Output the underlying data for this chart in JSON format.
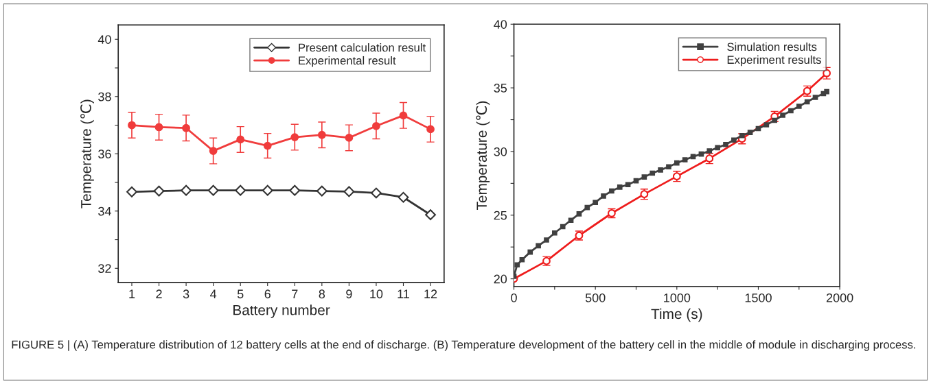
{
  "chart_data": [
    {
      "type": "line",
      "xlabel": "Battery number",
      "ylabel": "Temperature (℃)",
      "x": [
        1,
        2,
        3,
        4,
        5,
        6,
        7,
        8,
        9,
        10,
        11,
        12
      ],
      "xlim": [
        0.5,
        12.5
      ],
      "xticks": [
        1,
        2,
        3,
        4,
        5,
        6,
        7,
        8,
        9,
        10,
        11,
        12
      ],
      "ylim": [
        31.5,
        40.5
      ],
      "yticks": [
        32,
        {
          "value": 33,
          "label": null
        },
        34,
        {
          "value": 35,
          "label": null
        },
        36,
        {
          "value": 37,
          "label": null
        },
        38,
        {
          "value": 39,
          "label": null
        },
        40
      ],
      "legend": "top right",
      "grid": false,
      "series": [
        {
          "name": "Present calculation result",
          "color": "#333333",
          "marker": "diamond",
          "values": [
            34.67,
            34.7,
            34.72,
            34.72,
            34.72,
            34.72,
            34.72,
            34.7,
            34.68,
            34.63,
            34.48,
            33.87
          ]
        },
        {
          "name": "Experimental result",
          "color": "#f03c3c",
          "marker": "circle",
          "values": [
            37.0,
            36.93,
            36.9,
            36.1,
            36.5,
            36.28,
            36.58,
            36.66,
            36.56,
            36.97,
            37.34,
            36.86
          ],
          "errors": [
            0.45,
            0.45,
            0.45,
            0.45,
            0.45,
            0.43,
            0.45,
            0.45,
            0.45,
            0.45,
            0.45,
            0.45
          ]
        }
      ],
      "annotations": [
        "FIGURE 5 | (A) Temperature distribution of 12 battery cells at the end of discharge. (B) Temperature development of the battery cell in the middle of module in discharging process."
      ]
    },
    {
      "type": "line",
      "xlabel": "Time (s)",
      "ylabel": "Temperature (℃)",
      "xlim": [
        0,
        2000
      ],
      "xticks": [
        0,
        {
          "value": 250,
          "label": null
        },
        500,
        {
          "value": 750,
          "label": null
        },
        1000,
        {
          "value": 1250,
          "label": null
        },
        1500,
        {
          "value": 1750,
          "label": null
        },
        2000
      ],
      "ylim": [
        19.4,
        40
      ],
      "yticks": [
        20,
        {
          "value": 22.5,
          "label": null
        },
        25,
        {
          "value": 27.5,
          "label": null
        },
        30,
        {
          "value": 32.5,
          "label": null
        },
        35,
        {
          "value": 37.5,
          "label": null
        },
        40
      ],
      "legend": "top right",
      "grid": false,
      "series": [
        {
          "name": "Simulation results",
          "color": "#404040",
          "marker": "square",
          "x": [
            0,
            20,
            50,
            100,
            150,
            200,
            250,
            300,
            350,
            400,
            450,
            500,
            550,
            600,
            650,
            700,
            750,
            800,
            850,
            900,
            950,
            1000,
            1050,
            1100,
            1150,
            1200,
            1250,
            1300,
            1350,
            1400,
            1450,
            1500,
            1550,
            1600,
            1650,
            1700,
            1750,
            1800,
            1850,
            1900,
            1920
          ],
          "values": [
            20.2,
            21.1,
            21.5,
            22.1,
            22.6,
            23.05,
            23.6,
            24.1,
            24.6,
            25.1,
            25.6,
            26.0,
            26.5,
            26.9,
            27.2,
            27.4,
            27.7,
            28.0,
            28.3,
            28.55,
            28.8,
            29.1,
            29.35,
            29.6,
            29.8,
            30.05,
            30.3,
            30.55,
            30.9,
            31.25,
            31.5,
            31.8,
            32.1,
            32.45,
            32.85,
            33.2,
            33.55,
            33.9,
            34.25,
            34.55,
            34.7
          ]
        },
        {
          "name": "Experiment results",
          "color": "#ee1c1c",
          "marker": "circle",
          "x": [
            0,
            200,
            400,
            600,
            800,
            1000,
            1200,
            1400,
            1600,
            1800,
            1920
          ],
          "values": [
            20.0,
            21.4,
            23.4,
            25.15,
            26.65,
            28.05,
            29.45,
            31.0,
            32.75,
            34.75,
            36.15
          ],
          "errors": [
            null,
            0.35,
            0.35,
            0.35,
            0.4,
            0.4,
            0.4,
            0.4,
            0.4,
            0.4,
            0.45
          ]
        }
      ]
    }
  ]
}
